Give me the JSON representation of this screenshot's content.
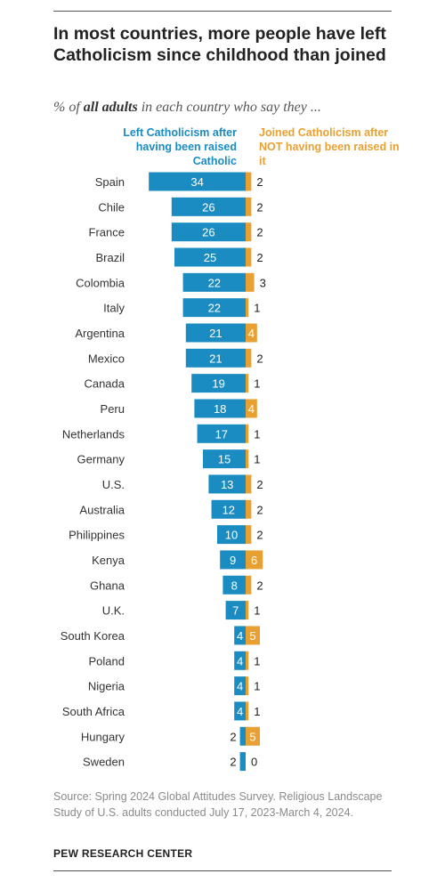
{
  "title": "In most countries, more people have left Catholicism since childhood than joined",
  "subtitle": {
    "prefix": "% of ",
    "emphasis": "all adults",
    "suffix": " in each country who say they ..."
  },
  "legend": {
    "left": "Left Catholicism after having been raised Catholic",
    "right": "Joined Catholicism after NOT having been raised in it"
  },
  "colors": {
    "left": "#1a8cc2",
    "right": "#e9a033",
    "label_inside": "#ffffff",
    "label_outside": "#222222"
  },
  "chart_data": {
    "type": "bar",
    "orientation": "horizontal diverging",
    "categories": [
      "Spain",
      "Chile",
      "France",
      "Brazil",
      "Colombia",
      "Italy",
      "Argentina",
      "Mexico",
      "Canada",
      "Peru",
      "Netherlands",
      "Germany",
      "U.S.",
      "Australia",
      "Philippines",
      "Kenya",
      "Ghana",
      "U.K.",
      "South Korea",
      "Poland",
      "Nigeria",
      "South Africa",
      "Hungary",
      "Sweden"
    ],
    "series": [
      {
        "name": "Left Catholicism after having been raised Catholic",
        "values": [
          34,
          26,
          26,
          25,
          22,
          22,
          21,
          21,
          19,
          18,
          17,
          15,
          13,
          12,
          10,
          9,
          8,
          7,
          4,
          4,
          4,
          4,
          2,
          2
        ]
      },
      {
        "name": "Joined Catholicism after NOT having been raised in it",
        "values": [
          2,
          2,
          2,
          2,
          3,
          1,
          4,
          2,
          1,
          4,
          1,
          1,
          2,
          2,
          2,
          6,
          2,
          1,
          5,
          1,
          1,
          1,
          5,
          0
        ]
      }
    ]
  },
  "source": "Source: Spring 2024 Global Attitudes Survey. Religious Landscape Study of U.S. adults conducted July 17, 2023-March 4, 2024.",
  "brand": "PEW RESEARCH CENTER"
}
